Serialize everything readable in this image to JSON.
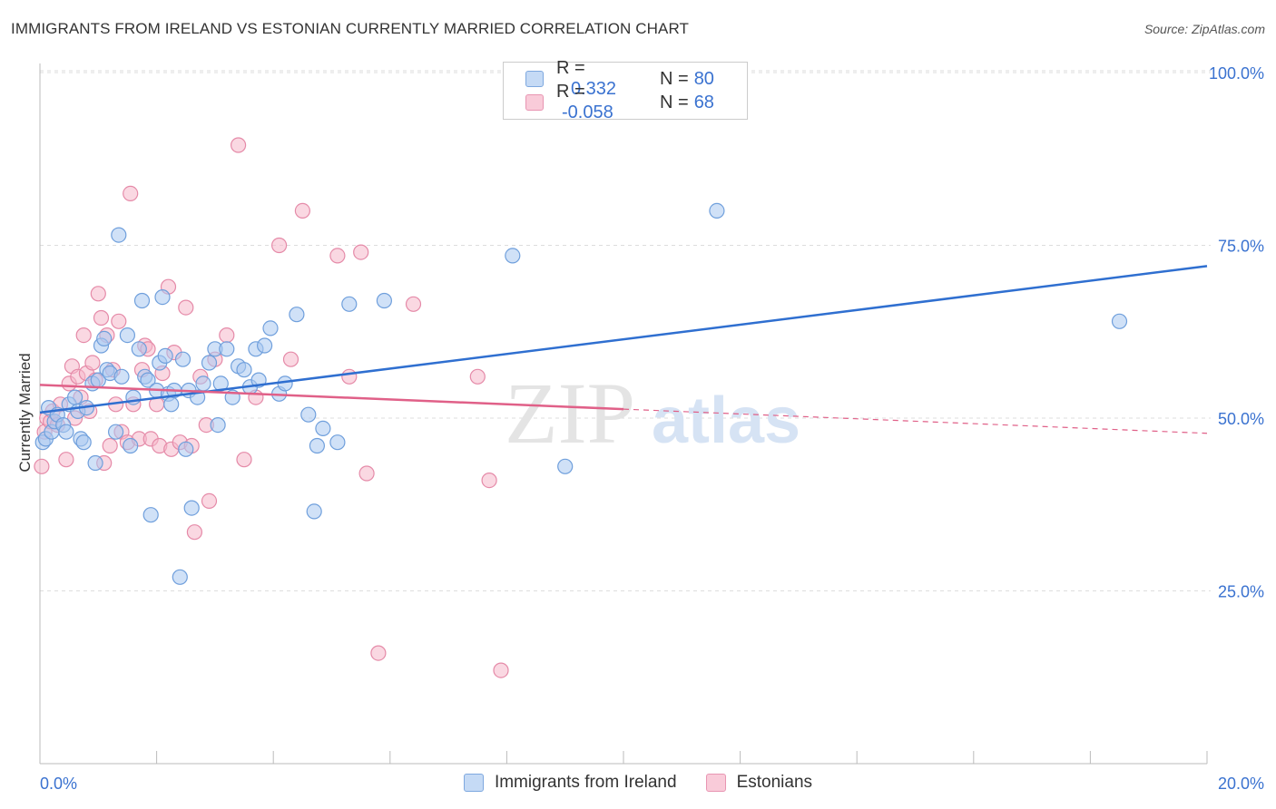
{
  "title": "IMMIGRANTS FROM IRELAND VS ESTONIAN CURRENTLY MARRIED CORRELATION CHART",
  "source": "Source: ZipAtlas.com",
  "watermark": {
    "zip": "ZIP",
    "atlas": "atlas"
  },
  "colors": {
    "blue_fill": "#a9c8f0",
    "blue_stroke": "#6f9fdc",
    "blue_line": "#2f6fd0",
    "pink_fill": "#f5b8cb",
    "pink_stroke": "#e58aa8",
    "pink_line": "#e06088",
    "tick_label": "#3a72d0",
    "grid": "#dddddd"
  },
  "legend_top": {
    "rows": [
      {
        "r_label": "R =",
        "r_value": "0.332",
        "n_label": "N =",
        "n_value": "80"
      },
      {
        "r_label": "R =",
        "r_value": "-0.058",
        "n_label": "N =",
        "n_value": "68"
      }
    ]
  },
  "chart_data": {
    "type": "scatter",
    "title": "IMMIGRANTS FROM IRELAND VS ESTONIAN CURRENTLY MARRIED CORRELATION CHART",
    "xlabel": "",
    "ylabel": "Currently Married",
    "xlim": [
      0,
      20
    ],
    "ylim": [
      0,
      105
    ],
    "x_ticks": [
      0,
      2,
      4,
      6,
      8,
      10,
      12,
      14,
      16,
      18,
      20
    ],
    "x_tick_labels": [
      {
        "value": 0,
        "label": "0.0%"
      },
      {
        "value": 20,
        "label": "20.0%"
      }
    ],
    "y_ticks": [
      {
        "value": 25,
        "label": "25.0%"
      },
      {
        "value": 50,
        "label": "50.0%"
      },
      {
        "value": 75,
        "label": "75.0%"
      },
      {
        "value": 100,
        "label": "100.0%"
      }
    ],
    "grid": true,
    "legend_position": "bottom",
    "series": [
      {
        "name": "Immigrants from Ireland",
        "color": "#a9c8f0",
        "trend": {
          "x": [
            0,
            20
          ],
          "y": [
            50.8,
            72.0
          ],
          "solid_until": 20
        },
        "points": [
          [
            0.05,
            46.5
          ],
          [
            0.1,
            47
          ],
          [
            0.15,
            51.5
          ],
          [
            0.2,
            48
          ],
          [
            0.25,
            49.5
          ],
          [
            0.3,
            50.5
          ],
          [
            0.4,
            49
          ],
          [
            0.45,
            48
          ],
          [
            0.5,
            52
          ],
          [
            0.6,
            53
          ],
          [
            0.65,
            51
          ],
          [
            0.7,
            47
          ],
          [
            0.75,
            46.5
          ],
          [
            0.8,
            51.5
          ],
          [
            0.9,
            55
          ],
          [
            0.95,
            43.5
          ],
          [
            1.0,
            55.5
          ],
          [
            1.05,
            60.5
          ],
          [
            1.1,
            61.5
          ],
          [
            1.15,
            57
          ],
          [
            1.2,
            56.5
          ],
          [
            1.3,
            48
          ],
          [
            1.35,
            76.5
          ],
          [
            1.4,
            56
          ],
          [
            1.5,
            62
          ],
          [
            1.55,
            46
          ],
          [
            1.6,
            53
          ],
          [
            1.7,
            60
          ],
          [
            1.75,
            67
          ],
          [
            1.8,
            56
          ],
          [
            1.85,
            55.5
          ],
          [
            1.9,
            36
          ],
          [
            2.0,
            54
          ],
          [
            2.05,
            58
          ],
          [
            2.1,
            67.5
          ],
          [
            2.15,
            59
          ],
          [
            2.2,
            53.5
          ],
          [
            2.25,
            52
          ],
          [
            2.3,
            54
          ],
          [
            2.4,
            27
          ],
          [
            2.45,
            58.5
          ],
          [
            2.5,
            45.5
          ],
          [
            2.55,
            54
          ],
          [
            2.6,
            37
          ],
          [
            2.7,
            53
          ],
          [
            2.8,
            55
          ],
          [
            2.9,
            58
          ],
          [
            3.0,
            60
          ],
          [
            3.05,
            49
          ],
          [
            3.1,
            55
          ],
          [
            3.2,
            60
          ],
          [
            3.3,
            53
          ],
          [
            3.4,
            57.5
          ],
          [
            3.5,
            57
          ],
          [
            3.6,
            54.5
          ],
          [
            3.7,
            60
          ],
          [
            3.75,
            55.5
          ],
          [
            3.85,
            60.5
          ],
          [
            3.95,
            63
          ],
          [
            4.1,
            53.5
          ],
          [
            4.2,
            55
          ],
          [
            4.4,
            65
          ],
          [
            4.6,
            50.5
          ],
          [
            4.7,
            36.5
          ],
          [
            4.75,
            46
          ],
          [
            4.85,
            48.5
          ],
          [
            5.1,
            46.5
          ],
          [
            5.3,
            66.5
          ],
          [
            5.9,
            67
          ],
          [
            8.1,
            73.5
          ],
          [
            9.0,
            43
          ],
          [
            11.6,
            80
          ],
          [
            18.5,
            64
          ]
        ]
      },
      {
        "name": "Estonians",
        "color": "#f5b8cb",
        "trend": {
          "x": [
            0,
            20
          ],
          "y": [
            54.8,
            47.8
          ],
          "solid_until": 10
        },
        "points": [
          [
            0.03,
            43
          ],
          [
            0.08,
            48
          ],
          [
            0.12,
            50
          ],
          [
            0.18,
            49.5
          ],
          [
            0.22,
            51
          ],
          [
            0.3,
            49
          ],
          [
            0.35,
            52
          ],
          [
            0.45,
            44
          ],
          [
            0.5,
            55
          ],
          [
            0.55,
            57.5
          ],
          [
            0.6,
            50
          ],
          [
            0.65,
            56
          ],
          [
            0.7,
            53
          ],
          [
            0.75,
            62
          ],
          [
            0.8,
            56.5
          ],
          [
            0.85,
            51
          ],
          [
            0.9,
            58
          ],
          [
            0.95,
            55.5
          ],
          [
            1.0,
            68
          ],
          [
            1.05,
            64.5
          ],
          [
            1.1,
            43.5
          ],
          [
            1.15,
            62
          ],
          [
            1.2,
            46
          ],
          [
            1.25,
            57
          ],
          [
            1.3,
            52
          ],
          [
            1.35,
            64
          ],
          [
            1.4,
            48
          ],
          [
            1.5,
            46.5
          ],
          [
            1.55,
            82.5
          ],
          [
            1.6,
            52
          ],
          [
            1.7,
            47
          ],
          [
            1.75,
            57
          ],
          [
            1.8,
            60.5
          ],
          [
            1.85,
            60
          ],
          [
            1.9,
            47
          ],
          [
            2.0,
            52
          ],
          [
            2.05,
            46
          ],
          [
            2.1,
            56.5
          ],
          [
            2.2,
            69
          ],
          [
            2.25,
            45.5
          ],
          [
            2.3,
            59.5
          ],
          [
            2.4,
            46.5
          ],
          [
            2.5,
            66
          ],
          [
            2.6,
            46
          ],
          [
            2.65,
            33.5
          ],
          [
            2.75,
            56
          ],
          [
            2.85,
            49
          ],
          [
            2.9,
            38
          ],
          [
            3.0,
            58.5
          ],
          [
            3.2,
            62
          ],
          [
            3.4,
            89.5
          ],
          [
            3.5,
            44
          ],
          [
            3.7,
            53
          ],
          [
            4.1,
            75
          ],
          [
            4.3,
            58.5
          ],
          [
            4.5,
            80
          ],
          [
            5.1,
            73.5
          ],
          [
            5.3,
            56
          ],
          [
            5.5,
            74
          ],
          [
            5.6,
            42
          ],
          [
            5.8,
            16
          ],
          [
            6.4,
            66.5
          ],
          [
            7.5,
            56
          ],
          [
            7.7,
            41
          ],
          [
            7.9,
            13.5
          ]
        ]
      }
    ]
  }
}
